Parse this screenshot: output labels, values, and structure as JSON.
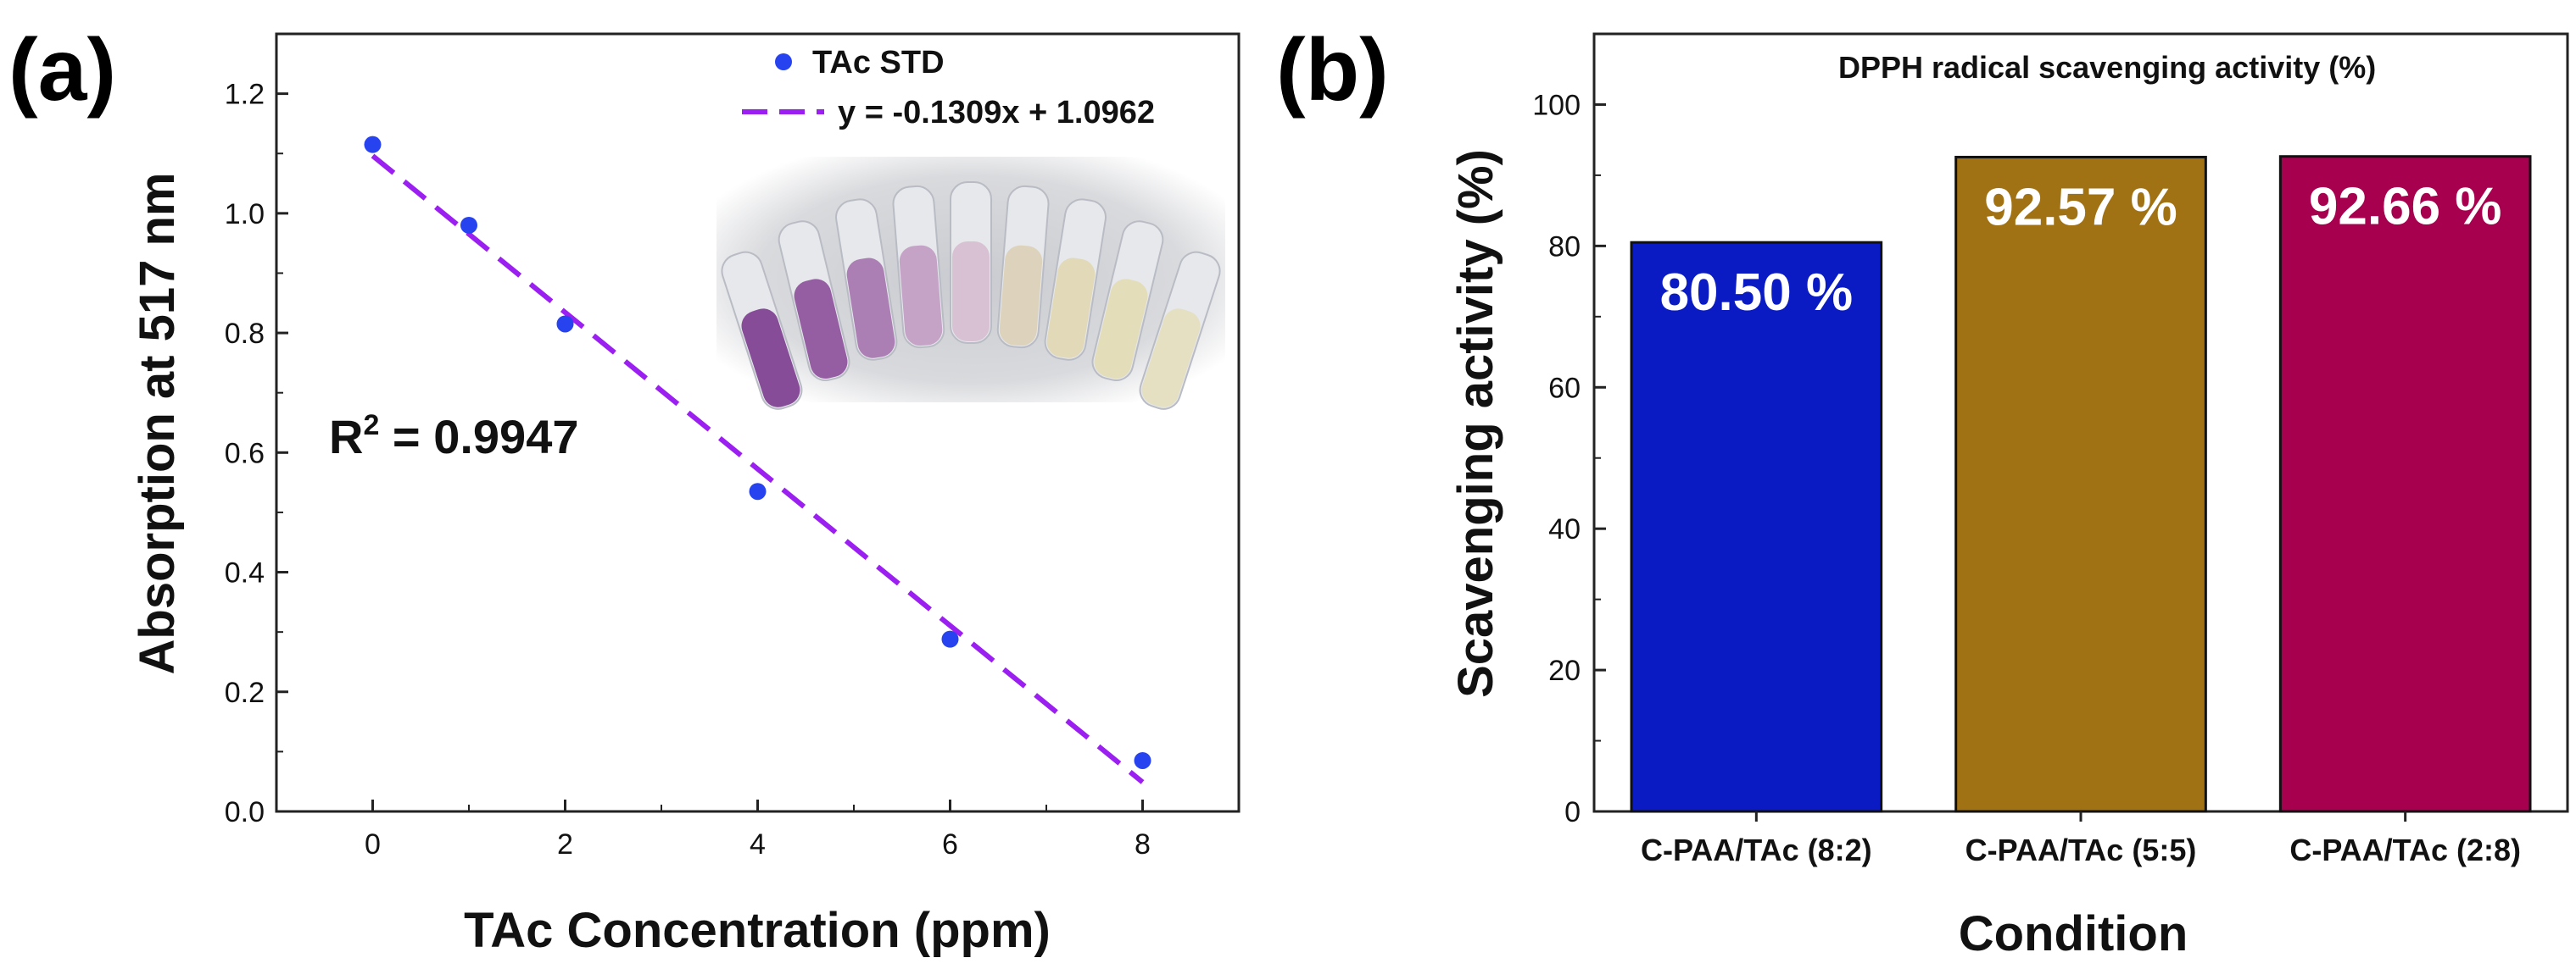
{
  "panels": {
    "a_label": "(a)",
    "b_label": "(b)"
  },
  "chart_data": [
    {
      "panel": "(a)",
      "type": "scatter",
      "title": "",
      "xlabel": "TAc Concentration (ppm)",
      "ylabel": "Absorption at 517 nm",
      "xlim": [
        -1,
        9
      ],
      "ylim": [
        0,
        1.3
      ],
      "xticks": [
        0,
        2,
        4,
        6,
        8
      ],
      "yticks": [
        0.0,
        0.2,
        0.4,
        0.6,
        0.8,
        1.0,
        1.2
      ],
      "xtick_labels": [
        "0",
        "2",
        "4",
        "6",
        "8"
      ],
      "ytick_labels": [
        "0.0",
        "0.2",
        "0.4",
        "0.6",
        "0.8",
        "1.0",
        "1.2"
      ],
      "series": [
        {
          "name": "TAc STD",
          "kind": "points",
          "color": "#2743f0",
          "x": [
            0,
            1,
            2,
            4,
            6,
            8
          ],
          "y": [
            1.115,
            0.98,
            0.815,
            0.535,
            0.288,
            0.085
          ]
        }
      ],
      "fit": {
        "name": "y = -0.1309x + 1.0962",
        "kind": "dashed-line",
        "color": "#9b1ff0",
        "slope": -0.1309,
        "intercept": 1.0962,
        "x_range": [
          0,
          8
        ]
      },
      "legend": {
        "placement": "top-right",
        "entries": [
          "TAc STD",
          "y = -0.1309x + 1.0962"
        ]
      },
      "annotation": {
        "r2_base": "R",
        "r2_sup": "2",
        "r2_value": " = 0.9947"
      },
      "inset": {
        "description_icon": "vials-photo-icon",
        "vial_colors": [
          "#7b3b8f",
          "#8d4f9a",
          "#a473ad",
          "#c19bc2",
          "#d6bcd0",
          "#dcd0b8",
          "#e0d7b2",
          "#e2dbb4",
          "#e4dfbe"
        ]
      }
    },
    {
      "panel": "(b)",
      "type": "bar",
      "title": "DPPH radical scavenging activity (%)",
      "xlabel": "Condition",
      "ylabel": "Scavenging activity (%)",
      "ylim": [
        0,
        110
      ],
      "yticks": [
        0,
        20,
        40,
        60,
        80,
        100
      ],
      "ytick_labels": [
        "0",
        "20",
        "40",
        "60",
        "80",
        "100"
      ],
      "categories": [
        "C-PAA/TAc (8:2)",
        "C-PAA/TAc (5:5)",
        "C-PAA/TAc (2:8)"
      ],
      "values": [
        80.5,
        92.57,
        92.66
      ],
      "value_labels": [
        "80.50 %",
        "92.57 %",
        "92.66 %"
      ],
      "colors": [
        "#0a1bc4",
        "#a07214",
        "#a6004e"
      ]
    }
  ]
}
